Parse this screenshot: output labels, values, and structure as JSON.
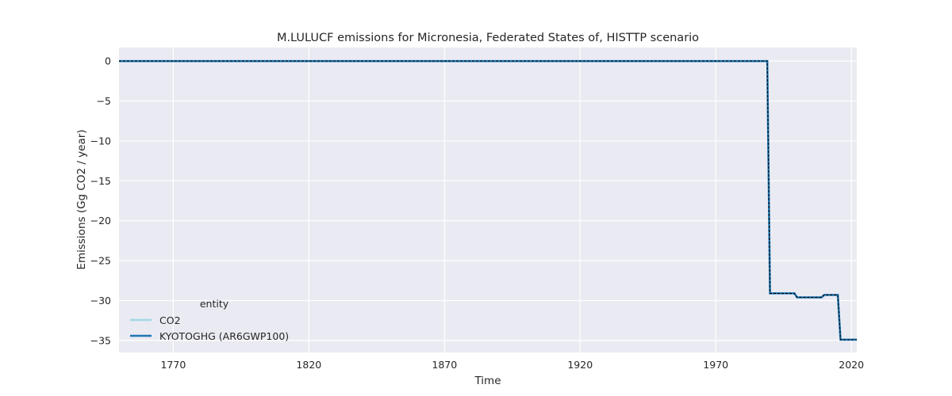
{
  "chart_data": {
    "type": "line",
    "title": "M.LULUCF emissions for Micronesia, Federated States of, HISTTP scenario",
    "xlabel": "Time",
    "ylabel": "Emissions (Gg CO2 / year)",
    "xlim": [
      1750,
      2022
    ],
    "ylim": [
      -36.5,
      1.7
    ],
    "xticks": [
      1770,
      1820,
      1870,
      1920,
      1970,
      2020
    ],
    "yticks": [
      0,
      -5,
      -10,
      -15,
      -20,
      -25,
      -30,
      -35
    ],
    "grid": true,
    "legend": {
      "title": "entity",
      "placement": "lower-left"
    },
    "series": [
      {
        "name": "CO2",
        "color": "#9edae5",
        "style": "solid",
        "x": [
          1750,
          1989,
          1990,
          1999,
          2000,
          2009,
          2010,
          2014,
          2015,
          2016,
          2022
        ],
        "y": [
          0,
          0,
          -29.1,
          -29.1,
          -29.6,
          -29.6,
          -29.3,
          -29.3,
          -29.3,
          -34.9,
          -34.9
        ]
      },
      {
        "name": "KYOTOGHG (AR6GWP100)",
        "color": "#1f77b4",
        "style": "solid",
        "x": [
          1750,
          1989,
          1990,
          1999,
          2000,
          2009,
          2010,
          2014,
          2015,
          2016,
          2022
        ],
        "y": [
          0,
          0,
          -29.1,
          -29.1,
          -29.6,
          -29.6,
          -29.3,
          -29.3,
          -29.3,
          -34.9,
          -34.9
        ]
      }
    ],
    "overlay_color": "#000000",
    "plot_bg": "#eaeaf2",
    "grid_color": "#ffffff"
  }
}
